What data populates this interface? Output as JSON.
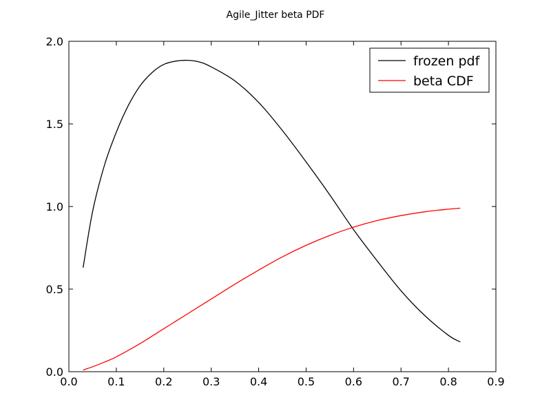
{
  "chart_data": {
    "type": "line",
    "title": "Agile_Jitter beta PDF",
    "xlabel": "",
    "ylabel": "",
    "xlim": [
      0.0,
      0.9
    ],
    "ylim": [
      0.0,
      2.0
    ],
    "xticks": [
      "0.0",
      "0.1",
      "0.2",
      "0.3",
      "0.4",
      "0.5",
      "0.6",
      "0.7",
      "0.8",
      "0.9"
    ],
    "yticks": [
      "0.0",
      "0.5",
      "1.0",
      "1.5",
      "2.0"
    ],
    "grid": false,
    "legend_position": "top-right",
    "series": [
      {
        "name": "frozen pdf",
        "color": "#000000",
        "x": [
          0.03,
          0.05,
          0.075,
          0.1,
          0.125,
          0.15,
          0.175,
          0.2,
          0.225,
          0.25,
          0.275,
          0.3,
          0.35,
          0.4,
          0.45,
          0.5,
          0.55,
          0.6,
          0.65,
          0.7,
          0.75,
          0.8,
          0.825
        ],
        "y": [
          0.63,
          0.97,
          1.25,
          1.45,
          1.61,
          1.73,
          1.81,
          1.86,
          1.88,
          1.885,
          1.875,
          1.845,
          1.76,
          1.63,
          1.46,
          1.27,
          1.07,
          0.86,
          0.67,
          0.49,
          0.34,
          0.22,
          0.18
        ]
      },
      {
        "name": "beta CDF",
        "color": "#ff0000",
        "x": [
          0.03,
          0.05,
          0.075,
          0.1,
          0.15,
          0.2,
          0.25,
          0.3,
          0.35,
          0.4,
          0.45,
          0.5,
          0.55,
          0.6,
          0.65,
          0.7,
          0.75,
          0.8,
          0.825
        ],
        "y": [
          0.01,
          0.03,
          0.058,
          0.09,
          0.17,
          0.26,
          0.35,
          0.44,
          0.53,
          0.615,
          0.695,
          0.765,
          0.825,
          0.875,
          0.915,
          0.945,
          0.968,
          0.984,
          0.99
        ]
      }
    ]
  }
}
